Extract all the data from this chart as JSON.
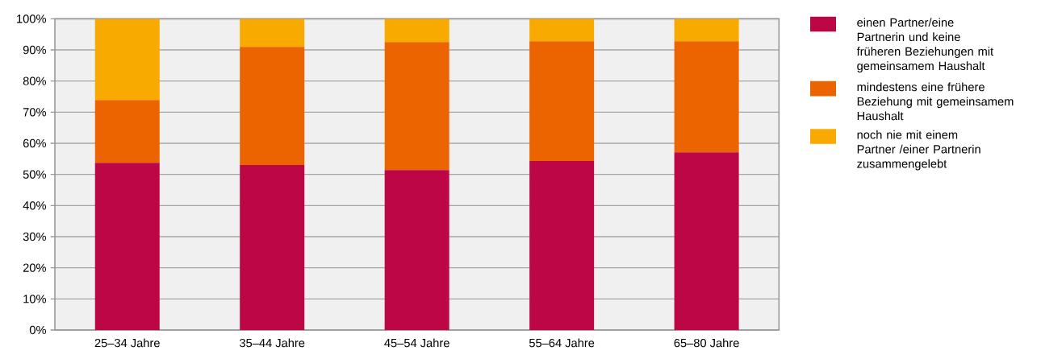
{
  "chart_data": {
    "type": "bar",
    "stacked": true,
    "categories": [
      "25–34 Jahre",
      "35–44 Jahre",
      "45–54 Jahre",
      "55–64 Jahre",
      "65–80 Jahre"
    ],
    "series": [
      {
        "name": "einen Partner/eine Partnerin und keine früheren Beziehungen mit gemeinsamem Haushalt",
        "color": "#bd0646",
        "values": [
          53.7,
          53.0,
          51.4,
          54.3,
          57.1
        ]
      },
      {
        "name": "mindestens eine frühere Beziehung mit gemeinsamem Haushalt",
        "color": "#ec6400",
        "values": [
          20.2,
          38.0,
          41.1,
          38.5,
          35.7
        ]
      },
      {
        "name": "noch nie mit einem Partner /einer Partnerin zusammengelebt",
        "color": "#f8aa00",
        "values": [
          26.1,
          9.0,
          7.5,
          7.2,
          7.2
        ]
      }
    ],
    "ylim": [
      0,
      100
    ],
    "yticks": [
      {
        "value": 0,
        "label": "0%"
      },
      {
        "value": 10,
        "label": "10%"
      },
      {
        "value": 20,
        "label": "20%"
      },
      {
        "value": 30,
        "label": "30%"
      },
      {
        "value": 40,
        "label": "40%"
      },
      {
        "value": 50,
        "label": "50%"
      },
      {
        "value": 60,
        "label": "60%"
      },
      {
        "value": 70,
        "label": "70%"
      },
      {
        "value": 80,
        "label": "80%"
      },
      {
        "value": 90,
        "label": "90%"
      },
      {
        "value": 100,
        "label": "100%"
      }
    ],
    "grid": "y",
    "legend": "right"
  }
}
